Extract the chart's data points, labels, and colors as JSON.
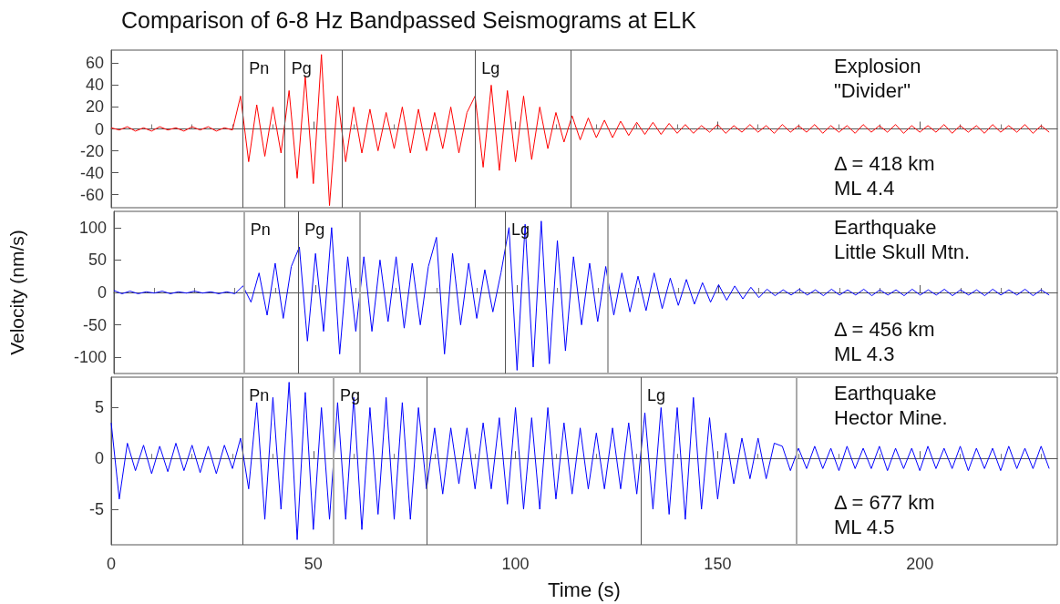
{
  "chart_data": [
    {
      "type": "line",
      "title": "Comparison of 6-8 Hz Bandpassed Seismograms at ELK",
      "tick_labels": "y",
      "xlim": [
        0,
        234
      ],
      "xticks": [
        0,
        50,
        100,
        150,
        200
      ],
      "ylim": [
        -72,
        72
      ],
      "yticks": [
        -60,
        -40,
        -20,
        0,
        20,
        40,
        60
      ],
      "x": [
        0,
        2,
        4,
        6,
        8,
        10,
        12,
        14,
        16,
        18,
        20,
        22,
        24,
        26,
        28,
        30,
        32,
        34,
        36,
        38,
        40,
        42,
        44,
        46,
        48,
        50,
        52,
        54,
        56,
        58,
        60,
        62,
        64,
        66,
        68,
        70,
        72,
        74,
        76,
        78,
        80,
        82,
        84,
        86,
        88,
        90,
        92,
        94,
        96,
        98,
        100,
        102,
        104,
        106,
        108,
        110,
        112,
        114,
        116,
        118,
        120,
        122,
        124,
        126,
        128,
        130,
        132,
        134,
        136,
        138,
        140,
        142,
        144,
        146,
        148,
        150,
        152,
        154,
        156,
        158,
        160,
        162,
        164,
        166,
        168,
        170,
        172,
        174,
        176,
        178,
        180,
        182,
        184,
        186,
        188,
        190,
        192,
        194,
        196,
        198,
        200,
        202,
        204,
        206,
        208,
        210,
        212,
        214,
        216,
        218,
        220,
        222,
        224,
        226,
        228,
        230,
        232
      ],
      "series": [
        {
          "color": "#ff0000",
          "values": [
            1,
            -1,
            2,
            -2,
            1,
            -2,
            2,
            -1,
            1,
            -2,
            2,
            -1,
            2,
            -2,
            1,
            -1,
            30,
            -30,
            22,
            -25,
            20,
            -22,
            35,
            -45,
            48,
            -50,
            68,
            -70,
            30,
            -30,
            20,
            -22,
            18,
            -20,
            15,
            -18,
            20,
            -22,
            18,
            -20,
            15,
            -18,
            20,
            -22,
            15,
            30,
            -35,
            40,
            -38,
            35,
            -30,
            30,
            -28,
            20,
            -18,
            15,
            -12,
            12,
            -10,
            10,
            -8,
            8,
            -8,
            7,
            -6,
            6,
            -5,
            6,
            -5,
            5,
            -4,
            4,
            -4,
            3,
            -3,
            4,
            -4,
            3,
            -3,
            4,
            -3,
            3,
            -4,
            4,
            -3,
            3,
            -3,
            4,
            -4,
            3,
            -3,
            3,
            -4,
            4,
            -3,
            3,
            -3,
            4,
            -4,
            3,
            -3,
            3,
            -3,
            4,
            -4,
            3,
            -3,
            3,
            -4,
            4,
            -3,
            3,
            -3,
            4,
            -4,
            3,
            -3
          ]
        }
      ],
      "ref_lines": [
        {
          "axis": "x",
          "value": 32.5,
          "color": "#555555",
          "label": "Pn"
        },
        {
          "axis": "x",
          "value": 43,
          "color": "#555555",
          "label": "Pg"
        },
        {
          "axis": "x",
          "value": 57,
          "color": "#555555"
        },
        {
          "axis": "x",
          "value": 90,
          "color": "#555555",
          "label": "Lg"
        },
        {
          "axis": "x",
          "value": 113.7,
          "color": "#555555"
        }
      ],
      "annotations": [
        "Explosion",
        "\"Divider\"",
        "Δ = 418 km",
        "ML 4.4"
      ]
    },
    {
      "type": "line",
      "ylabel": "Velocity (nm/s)",
      "tick_labels": "y",
      "xlim": [
        0,
        234
      ],
      "xticks": [
        0,
        50,
        100,
        150,
        200
      ],
      "ylim": [
        -125,
        125
      ],
      "yticks": [
        -100,
        -50,
        0,
        50,
        100
      ],
      "x": [
        0,
        2,
        4,
        6,
        8,
        10,
        12,
        14,
        16,
        18,
        20,
        22,
        24,
        26,
        28,
        30,
        32,
        34,
        36,
        38,
        40,
        42,
        44,
        46,
        48,
        50,
        52,
        54,
        56,
        58,
        60,
        62,
        64,
        66,
        68,
        70,
        72,
        74,
        76,
        78,
        80,
        82,
        84,
        86,
        88,
        90,
        92,
        94,
        96,
        98,
        100,
        102,
        104,
        106,
        108,
        110,
        112,
        114,
        116,
        118,
        120,
        122,
        124,
        126,
        128,
        130,
        132,
        134,
        136,
        138,
        140,
        142,
        144,
        146,
        148,
        150,
        152,
        154,
        156,
        158,
        160,
        162,
        164,
        166,
        168,
        170,
        172,
        174,
        176,
        178,
        180,
        182,
        184,
        186,
        188,
        190,
        192,
        194,
        196,
        198,
        200,
        202,
        204,
        206,
        208,
        210,
        212,
        214,
        216,
        218,
        220,
        222,
        224,
        226,
        228,
        230,
        232
      ],
      "series": [
        {
          "color": "#0000ff",
          "values": [
            3,
            -2,
            2,
            -2,
            1,
            -1,
            2,
            -2,
            1,
            -1,
            2,
            -1,
            1,
            -2,
            1,
            -2,
            10,
            -15,
            30,
            -35,
            45,
            -40,
            40,
            70,
            -75,
            60,
            -60,
            100,
            -95,
            55,
            -60,
            55,
            -60,
            50,
            -45,
            55,
            -55,
            45,
            -50,
            40,
            85,
            -95,
            60,
            -50,
            45,
            -40,
            35,
            -30,
            30,
            100,
            -120,
            105,
            -115,
            110,
            -110,
            80,
            -90,
            55,
            -50,
            45,
            -45,
            40,
            -35,
            30,
            -30,
            25,
            -28,
            30,
            -25,
            22,
            -20,
            20,
            -18,
            15,
            -15,
            12,
            -12,
            10,
            -10,
            8,
            -8,
            5,
            -5,
            4,
            -4,
            5,
            -4,
            4,
            -5,
            5,
            -4,
            4,
            -4,
            5,
            -5,
            4,
            -4,
            4,
            -5,
            5,
            -4,
            4,
            -4,
            5,
            -5,
            4,
            -4,
            4,
            -5,
            5,
            -4,
            4,
            -4,
            5,
            -5,
            4,
            -4
          ]
        }
      ],
      "ref_lines": [
        {
          "axis": "x",
          "value": 32.3,
          "color": "#aaaaaa",
          "label": "Pn"
        },
        {
          "axis": "x",
          "value": 45.7,
          "color": "#555555",
          "label": "Pg"
        },
        {
          "axis": "x",
          "value": 61,
          "color": "#aaaaaa"
        },
        {
          "axis": "x",
          "value": 97,
          "color": "#555555",
          "label": "Lg"
        },
        {
          "axis": "x",
          "value": 122.4,
          "color": "#aaaaaa"
        }
      ],
      "annotations": [
        "Earthquake",
        "Little Skull Mtn.",
        "Δ = 456 km",
        "ML 4.3"
      ]
    },
    {
      "type": "line",
      "xlabel": "Time (s)",
      "xlim": [
        0,
        234
      ],
      "xticks": [
        0,
        50,
        100,
        150,
        200
      ],
      "ylim": [
        -8.5,
        8
      ],
      "yticks": [
        -5,
        0,
        5
      ],
      "x": [
        0,
        2,
        4,
        6,
        8,
        10,
        12,
        14,
        16,
        18,
        20,
        22,
        24,
        26,
        28,
        30,
        32,
        34,
        36,
        38,
        40,
        42,
        44,
        46,
        48,
        50,
        52,
        54,
        56,
        58,
        60,
        62,
        64,
        66,
        68,
        70,
        72,
        74,
        76,
        78,
        80,
        82,
        84,
        86,
        88,
        90,
        92,
        94,
        96,
        98,
        100,
        102,
        104,
        106,
        108,
        110,
        112,
        114,
        116,
        118,
        120,
        122,
        124,
        126,
        128,
        130,
        132,
        134,
        136,
        138,
        140,
        142,
        144,
        146,
        148,
        150,
        152,
        154,
        156,
        158,
        160,
        162,
        164,
        166,
        168,
        170,
        172,
        174,
        176,
        178,
        180,
        182,
        184,
        186,
        188,
        190,
        192,
        194,
        196,
        198,
        200,
        202,
        204,
        206,
        208,
        210,
        212,
        214,
        216,
        218,
        220,
        222,
        224,
        226,
        228,
        230,
        232
      ],
      "series": [
        {
          "color": "#0000ff",
          "values": [
            3.5,
            -4,
            1.5,
            -1.2,
            1.3,
            -1.5,
            1.2,
            -1.3,
            1.5,
            -1.2,
            1.3,
            -1.4,
            1.2,
            -1.5,
            1.3,
            -1,
            2,
            -3,
            5.5,
            -6,
            6,
            -5,
            7.5,
            -8,
            6.5,
            -7,
            5,
            -6,
            5.5,
            -6,
            6,
            -7,
            5,
            -5.5,
            6,
            -6,
            5.5,
            -6,
            5,
            -3,
            3,
            -3.5,
            3,
            -2.5,
            3,
            -3,
            3.5,
            -3,
            4,
            -4.5,
            5,
            -5,
            4,
            -5,
            5,
            -4,
            3.5,
            -3.5,
            3,
            -3,
            2.5,
            -3,
            3,
            -3,
            3.5,
            -3.5,
            4.5,
            -5,
            5,
            -5.5,
            5,
            -6,
            6,
            -5,
            4,
            -4,
            2.5,
            -2.5,
            2,
            -2,
            2,
            -2,
            1.5,
            1.2,
            -1.2,
            1,
            -1,
            1.2,
            -1,
            1,
            -1.2,
            1.2,
            -1,
            1,
            -1,
            1.2,
            -1.2,
            1,
            -1,
            1,
            -1.2,
            1.2,
            -1,
            1,
            -1,
            1.2,
            -1.2,
            1,
            -1,
            1,
            -1.2,
            1.2,
            -1,
            1,
            -1,
            1.2,
            -1
          ]
        }
      ],
      "ref_lines": [
        {
          "axis": "x",
          "value": 32.5,
          "color": "#555555",
          "label": "Pn"
        },
        {
          "axis": "x",
          "value": 55,
          "color": "#aaaaaa",
          "label": "Pg"
        },
        {
          "axis": "x",
          "value": 78,
          "color": "#555555"
        },
        {
          "axis": "x",
          "value": 131,
          "color": "#555555",
          "label": "Lg"
        },
        {
          "axis": "x",
          "value": 169.5,
          "color": "#aaaaaa"
        }
      ],
      "annotations": [
        "Earthquake",
        "Hector Mine.",
        "Δ = 677 km",
        "ML 4.5"
      ]
    }
  ]
}
